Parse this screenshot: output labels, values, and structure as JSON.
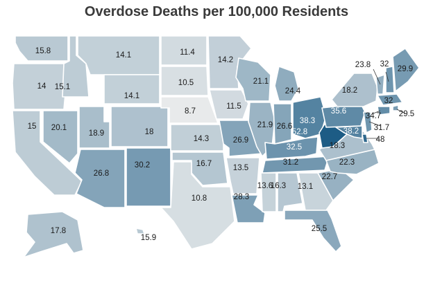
{
  "title": "Overdose Deaths per 100,000 Residents",
  "color_scale": {
    "low": "#e8eaeb",
    "high": "#1d5c85",
    "min": 8.7,
    "max": 52.8
  },
  "chart_data": {
    "type": "choropleth",
    "title": "Overdose Deaths per 100,000 Residents",
    "states": [
      {
        "state": "WA",
        "value": 15.8
      },
      {
        "state": "OR",
        "value": 14
      },
      {
        "state": "CA",
        "value": 15
      },
      {
        "state": "ID",
        "value": 15.1
      },
      {
        "state": "NV",
        "value": 20.1
      },
      {
        "state": "MT",
        "value": 14.1
      },
      {
        "state": "WY",
        "value": 14.1
      },
      {
        "state": "UT",
        "value": 18.9
      },
      {
        "state": "AZ",
        "value": 26.8
      },
      {
        "state": "CO",
        "value": 18
      },
      {
        "state": "NM",
        "value": 30.2
      },
      {
        "state": "ND",
        "value": 11.4
      },
      {
        "state": "SD",
        "value": 10.5
      },
      {
        "state": "NE",
        "value": 8.7
      },
      {
        "state": "KS",
        "value": 14.3
      },
      {
        "state": "OK",
        "value": 16.7
      },
      {
        "state": "TX",
        "value": 10.8
      },
      {
        "state": "MN",
        "value": 14.2
      },
      {
        "state": "IA",
        "value": 11.5
      },
      {
        "state": "MO",
        "value": 26.9
      },
      {
        "state": "AR",
        "value": 13.5
      },
      {
        "state": "LA",
        "value": 28.3
      },
      {
        "state": "WI",
        "value": 21.1
      },
      {
        "state": "IL",
        "value": 21.9
      },
      {
        "state": "MI",
        "value": 24.4
      },
      {
        "state": "IN",
        "value": 26.6
      },
      {
        "state": "OH",
        "value": 38.3
      },
      {
        "state": "KY",
        "value": 32.5
      },
      {
        "state": "TN",
        "value": 31.2
      },
      {
        "state": "MS",
        "value": 13.6
      },
      {
        "state": "AL",
        "value": 16.3
      },
      {
        "state": "GA",
        "value": 13.1
      },
      {
        "state": "FL",
        "value": 25.5
      },
      {
        "state": "SC",
        "value": 22.7
      },
      {
        "state": "NC",
        "value": 22.3
      },
      {
        "state": "VA",
        "value": 18.3
      },
      {
        "state": "WV",
        "value": 52.8
      },
      {
        "state": "PA",
        "value": 35.6
      },
      {
        "state": "NY",
        "value": 18.2
      },
      {
        "state": "VT",
        "value": 23.8
      },
      {
        "state": "NH",
        "value": 32
      },
      {
        "state": "ME",
        "value": 29.9
      },
      {
        "state": "MA",
        "value": 32
      },
      {
        "state": "RI",
        "value": 29.5
      },
      {
        "state": "CT",
        "value": 34.7
      },
      {
        "state": "NJ",
        "value": 31.7
      },
      {
        "state": "DE",
        "value": 48
      },
      {
        "state": "MD",
        "value": 38.2
      },
      {
        "state": "AK",
        "value": 17.8
      },
      {
        "state": "HI",
        "value": 15.9
      }
    ]
  }
}
